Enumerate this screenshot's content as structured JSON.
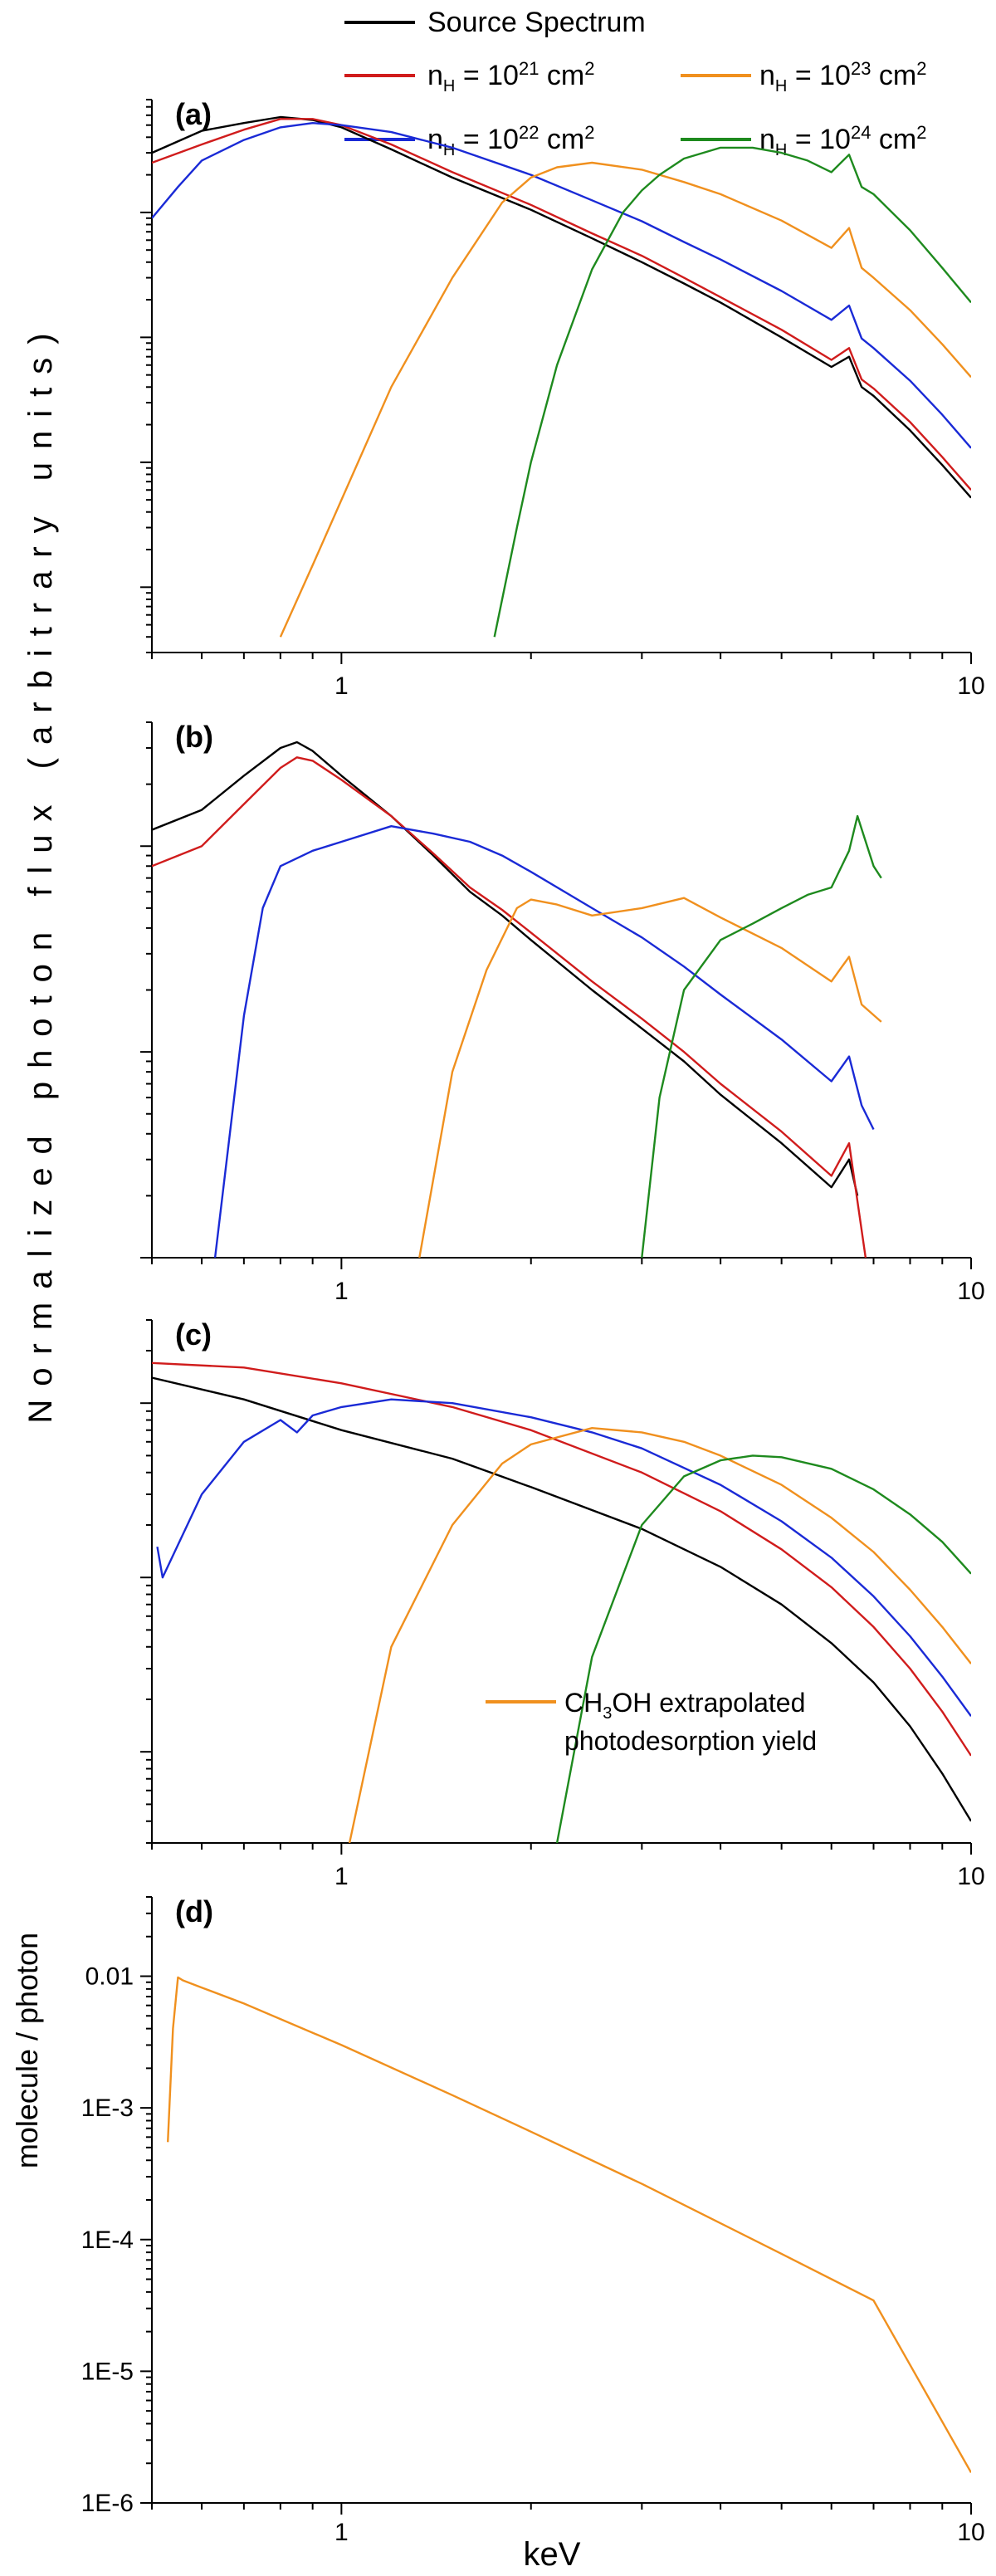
{
  "colors": {
    "source": "#000000",
    "nh21": "#d01c1c",
    "nh22": "#1a2ad6",
    "nh23": "#f0901e",
    "nh24": "#1e8a1e"
  },
  "y_axis_title": "Normalized photon flux (arbitrary units)",
  "x_axis_title": "keV",
  "legend": {
    "source": "Source Spectrum",
    "entries": [
      {
        "series": "nh21",
        "base": "n",
        "sub": "H",
        "mid": " = 10",
        "sup": "21",
        "unit": " cm",
        "unit_sup": "2"
      },
      {
        "series": "nh23",
        "base": "n",
        "sub": "H",
        "mid": " = 10",
        "sup": "23",
        "unit": " cm",
        "unit_sup": "2"
      },
      {
        "series": "nh22",
        "base": "n",
        "sub": "H",
        "mid": " = 10",
        "sup": "22",
        "unit": " cm",
        "unit_sup": "2"
      },
      {
        "series": "nh24",
        "base": "n",
        "sub": "H",
        "mid": " = 10",
        "sup": "24",
        "unit": " cm",
        "unit_sup": "2"
      }
    ]
  },
  "chart_data": [
    {
      "panel": "(a)",
      "type": "line",
      "xscale": "log",
      "yscale": "log",
      "xlim": [
        0.5,
        10
      ],
      "xticks": [
        "1",
        "10"
      ],
      "yticklabels": "none",
      "series": [
        {
          "name": "Source Spectrum",
          "key": "source",
          "x": [
            0.5,
            0.6,
            0.7,
            0.8,
            0.9,
            1.0,
            1.2,
            1.5,
            2.0,
            2.5,
            3.0,
            3.5,
            4.0,
            5.0,
            6.0,
            6.4,
            6.7,
            7.0,
            8.0,
            9.0,
            10.0
          ],
          "y": [
            3.0,
            4.5,
            5.2,
            5.8,
            5.5,
            4.8,
            3.2,
            1.9,
            1.05,
            0.62,
            0.4,
            0.27,
            0.19,
            0.1,
            0.058,
            0.07,
            0.04,
            0.034,
            0.018,
            0.0095,
            0.0052
          ]
        },
        {
          "name": "n_H = 10^21 cm^2",
          "key": "nh21",
          "x": [
            0.5,
            0.6,
            0.7,
            0.8,
            0.9,
            1.0,
            1.2,
            1.5,
            2.0,
            2.5,
            3.0,
            3.5,
            4.0,
            5.0,
            6.0,
            6.4,
            6.7,
            7.0,
            8.0,
            9.0,
            10.0
          ],
          "y": [
            2.5,
            3.5,
            4.6,
            5.6,
            5.6,
            5.0,
            3.5,
            2.1,
            1.15,
            0.68,
            0.45,
            0.3,
            0.21,
            0.115,
            0.066,
            0.082,
            0.046,
            0.039,
            0.021,
            0.011,
            0.006
          ]
        },
        {
          "name": "n_H = 10^22 cm^2",
          "key": "nh22",
          "x": [
            0.5,
            0.55,
            0.6,
            0.7,
            0.8,
            0.9,
            1.0,
            1.2,
            1.5,
            2.0,
            2.5,
            3.0,
            3.5,
            4.0,
            5.0,
            6.0,
            6.4,
            6.7,
            7.0,
            8.0,
            9.0,
            10.0
          ],
          "y": [
            0.9,
            1.6,
            2.6,
            3.8,
            4.8,
            5.2,
            5.0,
            4.4,
            3.3,
            2.0,
            1.25,
            0.85,
            0.58,
            0.42,
            0.235,
            0.138,
            0.18,
            0.098,
            0.082,
            0.045,
            0.024,
            0.013
          ]
        },
        {
          "name": "n_H = 10^23 cm^2",
          "key": "nh23",
          "x": [
            0.8,
            0.9,
            1.0,
            1.2,
            1.5,
            1.8,
            2.0,
            2.2,
            2.5,
            3.0,
            3.5,
            4.0,
            5.0,
            6.0,
            6.4,
            6.7,
            7.0,
            8.0,
            9.0,
            10.0
          ],
          "y": [
            0.0004,
            0.0015,
            0.005,
            0.04,
            0.3,
            1.2,
            1.9,
            2.3,
            2.5,
            2.2,
            1.75,
            1.4,
            0.86,
            0.52,
            0.75,
            0.36,
            0.3,
            0.165,
            0.088,
            0.048
          ]
        },
        {
          "name": "n_H = 10^24 cm^2",
          "key": "nh24",
          "x": [
            1.75,
            1.9,
            2.0,
            2.2,
            2.5,
            2.8,
            3.0,
            3.2,
            3.5,
            4.0,
            4.5,
            5.0,
            5.5,
            6.0,
            6.4,
            6.7,
            7.0,
            8.0,
            9.0,
            10.0
          ],
          "y": [
            0.0004,
            0.003,
            0.01,
            0.06,
            0.35,
            1.0,
            1.5,
            2.0,
            2.7,
            3.3,
            3.3,
            3.0,
            2.6,
            2.1,
            2.9,
            1.6,
            1.4,
            0.72,
            0.36,
            0.19
          ]
        }
      ]
    },
    {
      "panel": "(b)",
      "type": "line",
      "xscale": "log",
      "yscale": "log",
      "xlim": [
        0.5,
        10
      ],
      "xticks": [
        "1",
        "10"
      ],
      "yticklabels": "none",
      "series": [
        {
          "name": "Source Spectrum",
          "key": "source",
          "x": [
            0.5,
            0.6,
            0.7,
            0.8,
            0.85,
            0.9,
            1.0,
            1.2,
            1.4,
            1.6,
            1.8,
            2.0,
            2.5,
            3.0,
            3.5,
            4.0,
            5.0,
            6.0,
            6.4,
            6.6
          ],
          "y": [
            12,
            15,
            22,
            30,
            32,
            29,
            22,
            14,
            9.0,
            6.0,
            4.6,
            3.5,
            2.0,
            1.3,
            0.9,
            0.62,
            0.36,
            0.22,
            0.3,
            0.2
          ]
        },
        {
          "name": "n_H = 10^21 cm^2",
          "key": "nh21",
          "x": [
            0.5,
            0.6,
            0.7,
            0.8,
            0.85,
            0.9,
            1.0,
            1.2,
            1.4,
            1.6,
            1.8,
            2.0,
            2.5,
            3.0,
            3.5,
            4.0,
            5.0,
            6.0,
            6.4,
            6.8
          ],
          "y": [
            8,
            10,
            16,
            24,
            27,
            26,
            21,
            14,
            9.2,
            6.3,
            4.9,
            3.8,
            2.2,
            1.45,
            1.0,
            0.7,
            0.41,
            0.25,
            0.36,
            0.1
          ]
        },
        {
          "name": "n_H = 10^22 cm^2",
          "key": "nh22",
          "x": [
            0.63,
            0.7,
            0.75,
            0.8,
            0.9,
            1.0,
            1.2,
            1.4,
            1.6,
            1.8,
            2.0,
            2.5,
            3.0,
            3.5,
            4.0,
            5.0,
            6.0,
            6.4,
            6.7,
            7.0
          ],
          "y": [
            0.1,
            1.5,
            5.0,
            8.0,
            9.5,
            10.5,
            12.5,
            11.5,
            10.5,
            9.0,
            7.5,
            5.0,
            3.6,
            2.6,
            1.9,
            1.15,
            0.72,
            0.95,
            0.55,
            0.42
          ]
        },
        {
          "name": "n_H = 10^23 cm^2",
          "key": "nh23",
          "x": [
            1.33,
            1.5,
            1.7,
            1.9,
            2.0,
            2.2,
            2.5,
            3.0,
            3.5,
            4.0,
            5.0,
            6.0,
            6.4,
            6.7,
            7.2
          ],
          "y": [
            0.1,
            0.8,
            2.5,
            5.0,
            5.5,
            5.2,
            4.6,
            5.0,
            5.6,
            4.5,
            3.2,
            2.2,
            2.9,
            1.7,
            1.4
          ]
        },
        {
          "name": "n_H = 10^24 cm^2",
          "key": "nh24",
          "x": [
            3.0,
            3.2,
            3.5,
            4.0,
            4.5,
            5.0,
            5.5,
            6.0,
            6.4,
            6.6,
            7.0,
            7.2
          ],
          "y": [
            0.1,
            0.6,
            2.0,
            3.5,
            4.2,
            5.0,
            5.8,
            6.3,
            9.5,
            14,
            8.0,
            7.0
          ]
        }
      ]
    },
    {
      "panel": "(c)",
      "type": "line",
      "xscale": "log",
      "yscale": "log",
      "xlim": [
        0.5,
        10
      ],
      "xticks": [
        "1",
        "10"
      ],
      "yticklabels": "none",
      "series": [
        {
          "name": "Source Spectrum",
          "key": "source",
          "x": [
            0.5,
            0.7,
            1.0,
            1.5,
            2.0,
            3.0,
            4.0,
            5.0,
            6.0,
            7.0,
            8.0,
            9.0,
            10.0
          ],
          "y": [
            14,
            10.5,
            7.0,
            4.8,
            3.3,
            1.9,
            1.15,
            0.7,
            0.42,
            0.25,
            0.14,
            0.075,
            0.04
          ]
        },
        {
          "name": "n_H = 10^21 cm^2",
          "key": "nh21",
          "x": [
            0.5,
            0.7,
            1.0,
            1.5,
            2.0,
            3.0,
            4.0,
            5.0,
            6.0,
            7.0,
            8.0,
            9.0,
            10.0
          ],
          "y": [
            17,
            16,
            13,
            9.5,
            7.0,
            4.0,
            2.4,
            1.45,
            0.88,
            0.52,
            0.3,
            0.17,
            0.095
          ]
        },
        {
          "name": "n_H = 10^22 cm^2",
          "key": "nh22",
          "x": [
            0.51,
            0.52,
            0.6,
            0.7,
            0.8,
            0.85,
            0.9,
            1.0,
            1.2,
            1.5,
            2.0,
            2.5,
            3.0,
            4.0,
            5.0,
            6.0,
            7.0,
            8.0,
            9.0,
            10.0
          ],
          "y": [
            1.5,
            1.0,
            3.0,
            6.0,
            8.0,
            6.8,
            8.5,
            9.5,
            10.5,
            10.0,
            8.3,
            6.8,
            5.5,
            3.4,
            2.1,
            1.3,
            0.78,
            0.46,
            0.27,
            0.16
          ]
        },
        {
          "name": "n_H = 10^23 cm^2",
          "key": "nh23",
          "x": [
            1.03,
            1.2,
            1.5,
            1.8,
            2.0,
            2.5,
            3.0,
            3.5,
            4.0,
            5.0,
            6.0,
            7.0,
            8.0,
            9.0,
            10.0
          ],
          "y": [
            0.03,
            0.4,
            2.0,
            4.5,
            5.8,
            7.2,
            6.8,
            6.0,
            5.0,
            3.4,
            2.2,
            1.4,
            0.85,
            0.52,
            0.32
          ]
        },
        {
          "name": "n_H = 10^24 cm^2",
          "key": "nh24",
          "x": [
            2.2,
            2.5,
            3.0,
            3.5,
            4.0,
            4.5,
            5.0,
            6.0,
            7.0,
            8.0,
            9.0,
            10.0
          ],
          "y": [
            0.03,
            0.35,
            2.0,
            3.8,
            4.7,
            5.0,
            4.9,
            4.2,
            3.2,
            2.3,
            1.6,
            1.05
          ]
        }
      ]
    },
    {
      "panel": "(d)",
      "type": "line",
      "xscale": "log",
      "yscale": "log",
      "xlim": [
        0.5,
        10
      ],
      "ylim": [
        1e-06,
        0.04
      ],
      "xticks": [
        "1",
        "10"
      ],
      "yticks": [
        "1E-6",
        "1E-5",
        "1E-4",
        "1E-3",
        "0.01"
      ],
      "ylabel": "molecule / photon",
      "xlabel": "keV",
      "legend_line1": "CH",
      "legend_sub": "3",
      "legend_line1_rest": "OH extrapolated",
      "legend_line2": "photodesorption yield",
      "series": [
        {
          "name": "CH3OH extrapolated photodesorption yield",
          "key": "nh23",
          "x": [
            0.53,
            0.54,
            0.55,
            0.56,
            0.6,
            0.7,
            1.0,
            1.5,
            2.0,
            3.0,
            5.0,
            7.0,
            10.0
          ],
          "y": [
            0.00055,
            0.004,
            0.0098,
            0.0093,
            0.0082,
            0.0062,
            0.003,
            0.00125,
            0.00066,
            0.000265,
            7.8e-05,
            3.45e-05,
            1.7e-06
          ]
        }
      ]
    }
  ]
}
